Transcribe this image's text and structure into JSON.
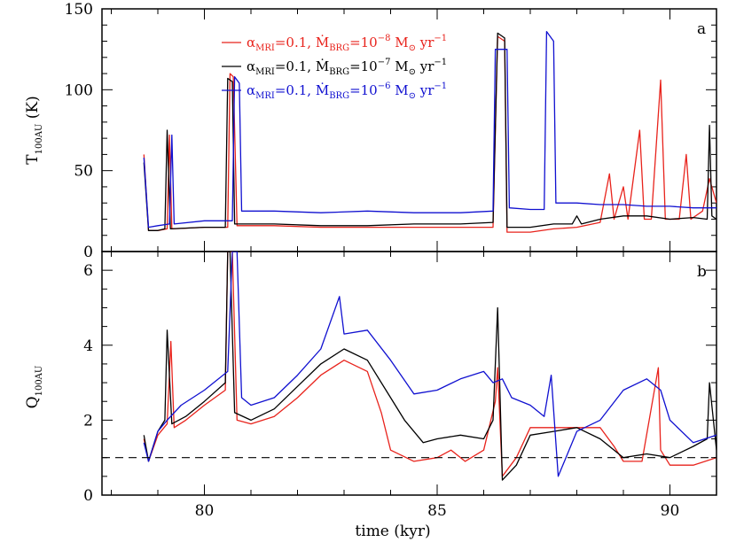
{
  "chart_data": [
    {
      "type": "line",
      "panel_label": "a",
      "xlabel": "time (kyr)",
      "ylabel": "T",
      "ylabel_sub": "100AU",
      "ylabel_unit": "(K)",
      "xlim": [
        77.8,
        91.0
      ],
      "ylim": [
        0,
        150
      ],
      "x_ticks": [
        80,
        85,
        90
      ],
      "y_ticks": [
        0,
        50,
        100,
        150
      ],
      "series": [
        {
          "name": "αMRI=0.1, ṀBRG=10^-8 M⊙ yr^-1",
          "name_parts": {
            "alpha": "α",
            "alpha_sub": "MRI",
            "eq1": "=0.1, ",
            "mdot": "Ṁ",
            "mdot_sub": "BRG",
            "eq2": "=10",
            "exp": "−8",
            "unit": " M",
            "sun": "⊙",
            "yr": " yr",
            "yr_exp": "−1"
          },
          "color": "#e8231c",
          "points": [
            [
              78.7,
              60
            ],
            [
              78.8,
              13
            ],
            [
              79.0,
              13
            ],
            [
              79.2,
              14
            ],
            [
              79.25,
              72
            ],
            [
              79.3,
              14
            ],
            [
              80.0,
              15
            ],
            [
              80.5,
              15
            ],
            [
              80.55,
              110
            ],
            [
              80.62,
              108
            ],
            [
              80.7,
              16
            ],
            [
              81.5,
              16
            ],
            [
              82.5,
              15
            ],
            [
              83.5,
              15
            ],
            [
              84.5,
              15
            ],
            [
              85.5,
              15
            ],
            [
              86.2,
              15
            ],
            [
              86.3,
              133
            ],
            [
              86.45,
              130
            ],
            [
              86.5,
              12
            ],
            [
              87.0,
              12
            ],
            [
              87.5,
              14
            ],
            [
              88.0,
              15
            ],
            [
              88.5,
              18
            ],
            [
              88.7,
              48
            ],
            [
              88.8,
              20
            ],
            [
              89.0,
              40
            ],
            [
              89.1,
              20
            ],
            [
              89.35,
              75
            ],
            [
              89.45,
              20
            ],
            [
              89.6,
              20
            ],
            [
              89.8,
              106
            ],
            [
              89.9,
              20
            ],
            [
              90.2,
              20
            ],
            [
              90.35,
              60
            ],
            [
              90.45,
              20
            ],
            [
              90.7,
              25
            ],
            [
              90.85,
              45
            ],
            [
              91.0,
              30
            ]
          ]
        },
        {
          "name": "αMRI=0.1, ṀBRG=10^-7 M⊙ yr^-1",
          "name_parts": {
            "alpha": "α",
            "alpha_sub": "MRI",
            "eq1": "=0.1, ",
            "mdot": "Ṁ",
            "mdot_sub": "BRG",
            "eq2": "=10",
            "exp": "−7",
            "unit": " M",
            "sun": "⊙",
            "yr": " yr",
            "yr_exp": "−1"
          },
          "color": "#000000",
          "points": [
            [
              78.7,
              55
            ],
            [
              78.8,
              13
            ],
            [
              79.0,
              13
            ],
            [
              79.15,
              14
            ],
            [
              79.2,
              75
            ],
            [
              79.27,
              14
            ],
            [
              80.0,
              15
            ],
            [
              80.45,
              15
            ],
            [
              80.5,
              107
            ],
            [
              80.6,
              105
            ],
            [
              80.65,
              17
            ],
            [
              81.5,
              17
            ],
            [
              82.5,
              16
            ],
            [
              83.5,
              16
            ],
            [
              84.5,
              17
            ],
            [
              85.5,
              17
            ],
            [
              86.2,
              18
            ],
            [
              86.3,
              135
            ],
            [
              86.45,
              132
            ],
            [
              86.5,
              15
            ],
            [
              87.0,
              15
            ],
            [
              87.5,
              17
            ],
            [
              87.9,
              17
            ],
            [
              88.0,
              22
            ],
            [
              88.1,
              17
            ],
            [
              88.5,
              20
            ],
            [
              89.0,
              22
            ],
            [
              89.5,
              22
            ],
            [
              90.0,
              20
            ],
            [
              90.5,
              21
            ],
            [
              90.8,
              20
            ],
            [
              90.85,
              78
            ],
            [
              90.9,
              22
            ],
            [
              91.0,
              20
            ]
          ]
        },
        {
          "name": "αMRI=0.1, ṀBRG=10^-6 M⊙ yr^-1",
          "name_parts": {
            "alpha": "α",
            "alpha_sub": "MRI",
            "eq1": "=0.1, ",
            "mdot": "Ṁ",
            "mdot_sub": "BRG",
            "eq2": "=10",
            "exp": "−6",
            "unit": " M",
            "sun": "⊙",
            "yr": " yr",
            "yr_exp": "−1"
          },
          "color": "#1010d0",
          "points": [
            [
              78.7,
              58
            ],
            [
              78.8,
              15
            ],
            [
              79.0,
              16
            ],
            [
              79.25,
              17
            ],
            [
              79.3,
              72
            ],
            [
              79.35,
              17
            ],
            [
              80.0,
              19
            ],
            [
              80.6,
              19
            ],
            [
              80.65,
              108
            ],
            [
              80.75,
              104
            ],
            [
              80.8,
              25
            ],
            [
              81.5,
              25
            ],
            [
              82.5,
              24
            ],
            [
              83.5,
              25
            ],
            [
              84.5,
              24
            ],
            [
              85.5,
              24
            ],
            [
              86.2,
              25
            ],
            [
              86.25,
              125
            ],
            [
              86.5,
              125
            ],
            [
              86.55,
              27
            ],
            [
              87.0,
              26
            ],
            [
              87.3,
              26
            ],
            [
              87.35,
              136
            ],
            [
              87.5,
              130
            ],
            [
              87.55,
              30
            ],
            [
              88.0,
              30
            ],
            [
              88.5,
              29
            ],
            [
              89.0,
              29
            ],
            [
              89.5,
              28
            ],
            [
              90.0,
              28
            ],
            [
              90.5,
              27
            ],
            [
              91.0,
              27
            ]
          ]
        }
      ]
    },
    {
      "type": "line",
      "panel_label": "b",
      "xlabel": "time (kyr)",
      "ylabel": "Q",
      "ylabel_sub": "100AU",
      "xlim": [
        77.8,
        91.0
      ],
      "ylim": [
        0,
        6.5
      ],
      "x_ticks": [
        80,
        85,
        90
      ],
      "y_ticks": [
        0,
        2,
        4,
        6
      ],
      "reference_line": {
        "y": 1.0,
        "style": "dashed",
        "color": "#000000"
      },
      "series": [
        {
          "name": "αMRI=0.1, ṀBRG=10^-8 M⊙ yr^-1",
          "color": "#e8231c",
          "points": [
            [
              78.7,
              1.5
            ],
            [
              78.8,
              0.9
            ],
            [
              79.0,
              1.6
            ],
            [
              79.2,
              1.9
            ],
            [
              79.28,
              4.1
            ],
            [
              79.35,
              1.8
            ],
            [
              79.6,
              2.0
            ],
            [
              80.0,
              2.4
            ],
            [
              80.45,
              2.8
            ],
            [
              80.5,
              6.5
            ],
            [
              80.6,
              6.5
            ],
            [
              80.7,
              2.0
            ],
            [
              81.0,
              1.9
            ],
            [
              81.5,
              2.1
            ],
            [
              82.0,
              2.6
            ],
            [
              82.5,
              3.2
            ],
            [
              83.0,
              3.6
            ],
            [
              83.5,
              3.3
            ],
            [
              83.8,
              2.2
            ],
            [
              84.0,
              1.2
            ],
            [
              84.5,
              0.9
            ],
            [
              85.0,
              1.0
            ],
            [
              85.3,
              1.2
            ],
            [
              85.6,
              0.9
            ],
            [
              86.0,
              1.2
            ],
            [
              86.25,
              2.5
            ],
            [
              86.3,
              3.4
            ],
            [
              86.4,
              0.5
            ],
            [
              86.7,
              1.0
            ],
            [
              87.0,
              1.8
            ],
            [
              87.5,
              1.8
            ],
            [
              88.0,
              1.8
            ],
            [
              88.5,
              1.8
            ],
            [
              88.8,
              1.3
            ],
            [
              89.0,
              0.9
            ],
            [
              89.4,
              0.9
            ],
            [
              89.75,
              3.4
            ],
            [
              89.8,
              1.2
            ],
            [
              90.0,
              0.8
            ],
            [
              90.5,
              0.8
            ],
            [
              91.0,
              1.0
            ]
          ]
        },
        {
          "name": "αMRI=0.1, ṀBRG=10^-7 M⊙ yr^-1",
          "color": "#000000",
          "points": [
            [
              78.7,
              1.6
            ],
            [
              78.8,
              0.9
            ],
            [
              79.0,
              1.7
            ],
            [
              79.15,
              2.0
            ],
            [
              79.2,
              4.4
            ],
            [
              79.3,
              1.9
            ],
            [
              79.6,
              2.1
            ],
            [
              80.0,
              2.5
            ],
            [
              80.45,
              3.0
            ],
            [
              80.5,
              6.5
            ],
            [
              80.55,
              6.5
            ],
            [
              80.65,
              2.2
            ],
            [
              81.0,
              2.0
            ],
            [
              81.5,
              2.3
            ],
            [
              82.0,
              2.9
            ],
            [
              82.5,
              3.5
            ],
            [
              83.0,
              3.9
            ],
            [
              83.5,
              3.6
            ],
            [
              84.0,
              2.6
            ],
            [
              84.3,
              2.0
            ],
            [
              84.7,
              1.4
            ],
            [
              85.0,
              1.5
            ],
            [
              85.5,
              1.6
            ],
            [
              86.0,
              1.5
            ],
            [
              86.2,
              2.0
            ],
            [
              86.3,
              5.0
            ],
            [
              86.4,
              0.4
            ],
            [
              86.7,
              0.8
            ],
            [
              87.0,
              1.6
            ],
            [
              87.5,
              1.7
            ],
            [
              88.0,
              1.8
            ],
            [
              88.5,
              1.5
            ],
            [
              89.0,
              1.0
            ],
            [
              89.5,
              1.1
            ],
            [
              90.0,
              1.0
            ],
            [
              90.5,
              1.3
            ],
            [
              90.8,
              1.5
            ],
            [
              90.85,
              3.0
            ],
            [
              91.0,
              1.2
            ]
          ]
        },
        {
          "name": "αMRI=0.1, ṀBRG=10^-6 M⊙ yr^-1",
          "color": "#1010d0",
          "points": [
            [
              78.7,
              1.4
            ],
            [
              78.8,
              0.9
            ],
            [
              79.0,
              1.7
            ],
            [
              79.2,
              2.0
            ],
            [
              79.5,
              2.4
            ],
            [
              80.0,
              2.8
            ],
            [
              80.5,
              3.3
            ],
            [
              80.6,
              6.5
            ],
            [
              80.7,
              6.5
            ],
            [
              80.8,
              2.6
            ],
            [
              81.0,
              2.4
            ],
            [
              81.5,
              2.6
            ],
            [
              82.0,
              3.2
            ],
            [
              82.5,
              3.9
            ],
            [
              82.9,
              5.3
            ],
            [
              83.0,
              4.3
            ],
            [
              83.5,
              4.4
            ],
            [
              84.0,
              3.6
            ],
            [
              84.5,
              2.7
            ],
            [
              85.0,
              2.8
            ],
            [
              85.5,
              3.1
            ],
            [
              86.0,
              3.3
            ],
            [
              86.2,
              3.0
            ],
            [
              86.4,
              3.1
            ],
            [
              86.6,
              2.6
            ],
            [
              87.0,
              2.4
            ],
            [
              87.3,
              2.1
            ],
            [
              87.45,
              3.2
            ],
            [
              87.6,
              0.5
            ],
            [
              88.0,
              1.7
            ],
            [
              88.5,
              2.0
            ],
            [
              89.0,
              2.8
            ],
            [
              89.5,
              3.1
            ],
            [
              89.8,
              2.8
            ],
            [
              90.0,
              2.0
            ],
            [
              90.5,
              1.4
            ],
            [
              91.0,
              1.6
            ]
          ]
        }
      ]
    }
  ]
}
